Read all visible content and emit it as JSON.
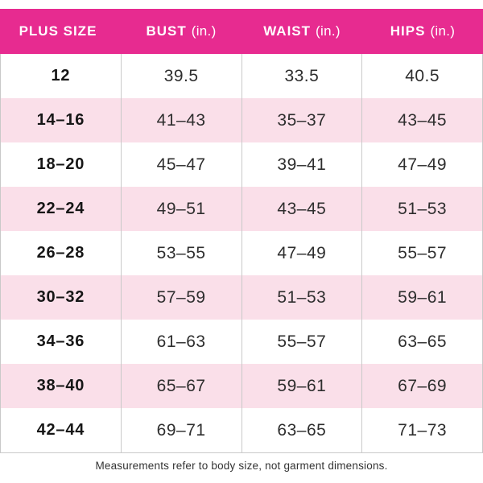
{
  "chart_data": {
    "type": "table",
    "columns": [
      {
        "label": "PLUS SIZE",
        "unit": ""
      },
      {
        "label": "BUST",
        "unit": "(in.)"
      },
      {
        "label": "WAIST",
        "unit": "(in.)"
      },
      {
        "label": "HIPS",
        "unit": "(in.)"
      }
    ],
    "rows": [
      [
        "12",
        "39.5",
        "33.5",
        "40.5"
      ],
      [
        "14–16",
        "41–43",
        "35–37",
        "43–45"
      ],
      [
        "18–20",
        "45–47",
        "39–41",
        "47–49"
      ],
      [
        "22–24",
        "49–51",
        "43–45",
        "51–53"
      ],
      [
        "26–28",
        "53–55",
        "47–49",
        "55–57"
      ],
      [
        "30–32",
        "57–59",
        "51–53",
        "59–61"
      ],
      [
        "34–36",
        "61–63",
        "55–57",
        "63–65"
      ],
      [
        "38–40",
        "65–67",
        "59–61",
        "67–69"
      ],
      [
        "42–44",
        "69–71",
        "63–65",
        "71–73"
      ]
    ],
    "note": "Measurements refer to body size, not garment dimensions."
  },
  "colors": {
    "header_bg": "#E72B90",
    "header_text": "#FFFFFF",
    "row_bg": "#FFFFFF",
    "row_alt_bg": "#FADFE9",
    "grid_line": "#C9C9C9",
    "size_text": "#161616",
    "value_text": "#2E2E2E",
    "note_text": "#333333"
  }
}
